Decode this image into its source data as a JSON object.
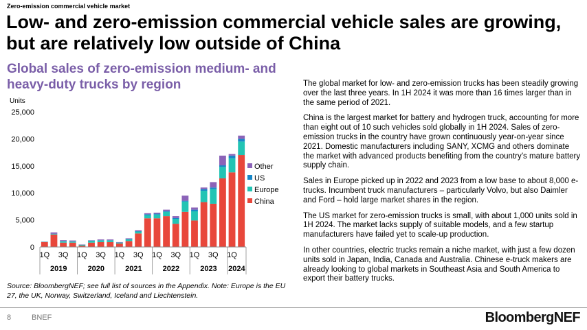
{
  "header": {
    "section_label": "Zero-emission commercial vehicle market",
    "title": "Low- and zero-emission commercial vehicle sales are growing, but are relatively low outside of China"
  },
  "chart_title": "Global sales of zero-emission medium- and heavy-duty trucks by region",
  "chart_data": {
    "type": "bar",
    "stacked": true,
    "ylabel": "Units",
    "ylim": [
      0,
      25000
    ],
    "yticks": [
      0,
      5000,
      10000,
      15000,
      20000,
      25000
    ],
    "ytick_labels": [
      "0",
      "5,000",
      "10,000",
      "15,000",
      "20,000",
      "25,000"
    ],
    "categories": [
      "2019 1Q",
      "2019 2Q",
      "2019 3Q",
      "2019 4Q",
      "2020 1Q",
      "2020 2Q",
      "2020 3Q",
      "2020 4Q",
      "2021 1Q",
      "2021 2Q",
      "2021 3Q",
      "2021 4Q",
      "2022 1Q",
      "2022 2Q",
      "2022 3Q",
      "2022 4Q",
      "2023 1Q",
      "2023 2Q",
      "2023 3Q",
      "2023 4Q",
      "2024 1Q",
      "2024 2Q"
    ],
    "quarter_tick_labels": [
      {
        "index": 0,
        "label": "1Q"
      },
      {
        "index": 2,
        "label": "3Q"
      },
      {
        "index": 4,
        "label": "1Q"
      },
      {
        "index": 6,
        "label": "3Q"
      },
      {
        "index": 8,
        "label": "1Q"
      },
      {
        "index": 10,
        "label": "3Q"
      },
      {
        "index": 12,
        "label": "1Q"
      },
      {
        "index": 14,
        "label": "3Q"
      },
      {
        "index": 16,
        "label": "1Q"
      },
      {
        "index": 18,
        "label": "3Q"
      },
      {
        "index": 20,
        "label": "1Q"
      }
    ],
    "year_groups": [
      {
        "label": "2019",
        "start": 0,
        "count": 4
      },
      {
        "label": "2020",
        "start": 4,
        "count": 4
      },
      {
        "label": "2021",
        "start": 8,
        "count": 4
      },
      {
        "label": "2022",
        "start": 12,
        "count": 4
      },
      {
        "label": "2023",
        "start": 16,
        "count": 4
      },
      {
        "label": "2024",
        "start": 20,
        "count": 2
      }
    ],
    "series": [
      {
        "name": "China",
        "color": "#e8473b",
        "values": [
          900,
          2300,
          800,
          800,
          250,
          800,
          900,
          900,
          650,
          1100,
          2500,
          5300,
          5300,
          5700,
          4300,
          6500,
          4900,
          8300,
          8000,
          12700,
          13800,
          17000
        ]
      },
      {
        "name": "Europe",
        "color": "#22c4b4",
        "values": [
          50,
          100,
          250,
          200,
          150,
          350,
          300,
          300,
          150,
          300,
          350,
          600,
          700,
          800,
          900,
          1900,
          1700,
          2100,
          2700,
          2100,
          2600,
          2500
        ]
      },
      {
        "name": "US",
        "color": "#1787c7",
        "values": [
          20,
          50,
          50,
          40,
          20,
          40,
          50,
          50,
          30,
          80,
          70,
          150,
          150,
          150,
          150,
          150,
          300,
          300,
          300,
          300,
          500,
          500
        ]
      },
      {
        "name": "Other",
        "color": "#8b63b8",
        "values": [
          30,
          250,
          150,
          160,
          50,
          50,
          150,
          150,
          70,
          120,
          180,
          200,
          200,
          250,
          350,
          950,
          400,
          300,
          1000,
          1800,
          300,
          600
        ]
      }
    ],
    "legend": {
      "position": "right",
      "order": [
        "Other",
        "US",
        "Europe",
        "China"
      ]
    }
  },
  "source_note": "Source: BloombergNEF; see full list of sources in the Appendix. Note: Europe is the EU 27, the UK, Norway, Switzerland, Iceland and Liechtenstein.",
  "body_paragraphs": [
    "The global market for low- and zero-emission trucks has been steadily growing over the last three years. In 1H 2024 it was more than 16 times larger than in the same period of 2021.",
    "China is the largest market for battery and hydrogen truck, accounting for more than eight out of 10 such vehicles sold globally in 1H 2024. Sales of zero-emission trucks in the country have grown continuously year-on-year since 2021. Domestic manufacturers including SANY, XCMG and others dominate the market with advanced products benefiting from the country’s mature battery supply chain.",
    "Sales in Europe picked up in 2022 and 2023 from a low base to about 8,000 e-trucks. Incumbent truck manufacturers – particularly Volvo, but also Daimler and Ford – hold large market shares in the region.",
    "The US market for zero-emission trucks is small, with about 1,000 units sold in 1H 2024. The market lacks supply of suitable models, and a few startup manufacturers have failed yet to scale-up production.",
    "In other countries, electric trucks remain a niche market, with just a few dozen units sold in Japan, India, Canada and Australia. Chinese e-truck makers are already looking to global markets in Southeast Asia and South America to export their battery trucks."
  ],
  "footer": {
    "page_number": "8",
    "brand": "BNEF",
    "logo_text": "BloombergNEF"
  }
}
